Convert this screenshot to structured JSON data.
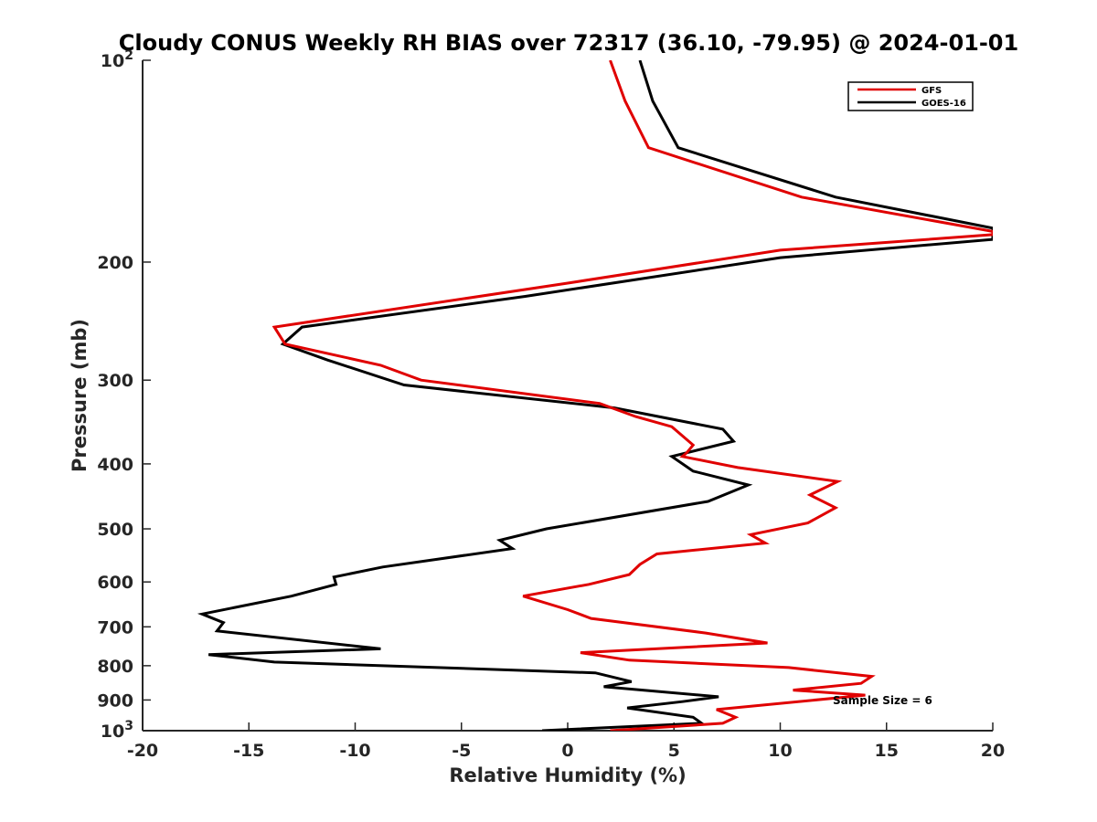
{
  "chart_data": {
    "type": "line",
    "title": "Cloudy CONUS Weekly RH BIAS over 72317 (36.10, -79.95) @ 2024-01-01",
    "xlabel": "Relative Humidity (%)",
    "ylabel": "Pressure (mb)",
    "xlim": [
      -20,
      20
    ],
    "ylim": [
      100,
      1000
    ],
    "yscale": "log",
    "yreversed": true,
    "x_ticks": [
      "-20",
      "-15",
      "-10",
      "-5",
      "0",
      "5",
      "10",
      "15",
      "20"
    ],
    "y_ticks": [
      {
        "value": 100,
        "label": "10",
        "sup": "2"
      },
      {
        "value": 200,
        "label": "200",
        "sup": ""
      },
      {
        "value": 300,
        "label": "300",
        "sup": ""
      },
      {
        "value": 400,
        "label": "400",
        "sup": ""
      },
      {
        "value": 500,
        "label": "500",
        "sup": ""
      },
      {
        "value": 600,
        "label": "600",
        "sup": ""
      },
      {
        "value": 700,
        "label": "700",
        "sup": ""
      },
      {
        "value": 800,
        "label": "800",
        "sup": ""
      },
      {
        "value": 900,
        "label": "900",
        "sup": ""
      },
      {
        "value": 1000,
        "label": "10",
        "sup": "3"
      }
    ],
    "grid": false,
    "legend_position": "top-right",
    "annotation": "Sample Size = 6",
    "series": [
      {
        "name": "GFS",
        "color": "#e00000",
        "points": [
          [
            2.0,
            100
          ],
          [
            2.7,
            115
          ],
          [
            3.8,
            135
          ],
          [
            11,
            160
          ],
          [
            20,
            180
          ],
          [
            20,
            182
          ],
          [
            10,
            192
          ],
          [
            0,
            215
          ],
          [
            -13.8,
            250
          ],
          [
            -13.3,
            265
          ],
          [
            -8.8,
            285
          ],
          [
            -6.9,
            300
          ],
          [
            1.5,
            325
          ],
          [
            3.2,
            340
          ],
          [
            4.9,
            352
          ],
          [
            5.9,
            375
          ],
          [
            5.6,
            385
          ],
          [
            5.4,
            390
          ],
          [
            8.0,
            405
          ],
          [
            12.7,
            425
          ],
          [
            11.4,
            445
          ],
          [
            12.6,
            465
          ],
          [
            11.3,
            490
          ],
          [
            8.6,
            510
          ],
          [
            9.3,
            525
          ],
          [
            4.2,
            545
          ],
          [
            3.4,
            565
          ],
          [
            2.9,
            585
          ],
          [
            1.0,
            605
          ],
          [
            -2.1,
            630
          ],
          [
            0.0,
            660
          ],
          [
            1.1,
            680
          ],
          [
            6.5,
            715
          ],
          [
            9.4,
            740
          ],
          [
            0.6,
            765
          ],
          [
            2.9,
            785
          ],
          [
            10.4,
            805
          ],
          [
            14.3,
            830
          ],
          [
            13.8,
            850
          ],
          [
            10.6,
            870
          ],
          [
            14.0,
            885
          ],
          [
            7.0,
            930
          ],
          [
            7.9,
            955
          ],
          [
            7.3,
            975
          ],
          [
            2.0,
            1000
          ]
        ]
      },
      {
        "name": "GOES-16",
        "color": "#000000",
        "points": [
          [
            3.4,
            100
          ],
          [
            4.0,
            115
          ],
          [
            5.2,
            135
          ],
          [
            12.6,
            160
          ],
          [
            20,
            178
          ],
          [
            20,
            185
          ],
          [
            10,
            197
          ],
          [
            -2,
            225
          ],
          [
            -12.5,
            250
          ],
          [
            -13.4,
            265
          ],
          [
            -11.3,
            280
          ],
          [
            -7.7,
            305
          ],
          [
            2.2,
            330
          ],
          [
            7.3,
            355
          ],
          [
            7.8,
            370
          ],
          [
            4.9,
            390
          ],
          [
            5.9,
            410
          ],
          [
            8.5,
            430
          ],
          [
            6.6,
            455
          ],
          [
            -1.0,
            500
          ],
          [
            -3.2,
            520
          ],
          [
            -2.6,
            535
          ],
          [
            -8.7,
            570
          ],
          [
            -11.0,
            590
          ],
          [
            -10.9,
            605
          ],
          [
            -13.0,
            630
          ],
          [
            -17.2,
            670
          ],
          [
            -16.2,
            690
          ],
          [
            -16.5,
            710
          ],
          [
            -8.8,
            755
          ],
          [
            -16.9,
            770
          ],
          [
            -13.8,
            790
          ],
          [
            1.3,
            820
          ],
          [
            3.0,
            845
          ],
          [
            1.7,
            860
          ],
          [
            7.1,
            890
          ],
          [
            5.4,
            905
          ],
          [
            2.8,
            925
          ],
          [
            5.9,
            955
          ],
          [
            6.3,
            975
          ],
          [
            -1.2,
            1000
          ]
        ]
      }
    ]
  }
}
